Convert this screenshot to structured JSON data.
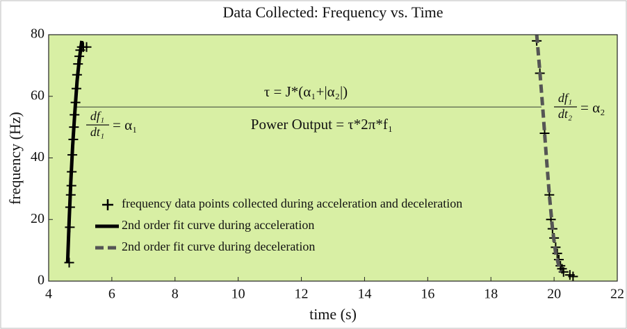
{
  "chart_data": {
    "type": "line",
    "title": "Data Collected: Frequency vs. Time",
    "x_label": "time (s)",
    "y_label": "frequency (Hz)",
    "xlim": [
      4,
      22
    ],
    "ylim": [
      0,
      80
    ],
    "xticks": [
      4,
      6,
      8,
      10,
      12,
      14,
      16,
      18,
      20,
      22
    ],
    "yticks": [
      0,
      20,
      40,
      60,
      80
    ],
    "grid": false,
    "background": "#d8efa4",
    "series": [
      {
        "name": "frequency data points collected during acceleration and deceleration",
        "color": "#000000",
        "marker": "+",
        "line": false,
        "x": [
          4.65,
          4.67,
          4.68,
          4.7,
          4.72,
          4.73,
          4.75,
          4.78,
          4.8,
          4.82,
          4.85,
          4.88,
          4.9,
          4.93,
          4.97,
          5.0,
          5.05,
          5.1,
          5.2,
          19.45,
          19.55,
          19.7,
          19.85,
          19.9,
          19.95,
          20.0,
          20.05,
          20.1,
          20.15,
          20.2,
          20.25,
          20.3,
          20.5,
          20.6
        ],
        "values": [
          6,
          17.5,
          24,
          28,
          31,
          35.5,
          41,
          46,
          50,
          54,
          58,
          62.5,
          67,
          70.5,
          73,
          75,
          76,
          76,
          76,
          78,
          67.5,
          48,
          28,
          20,
          17,
          14,
          11,
          9,
          7,
          5,
          4,
          3,
          2,
          1.5
        ]
      },
      {
        "name": "2nd order fit curve during acceleration",
        "color": "#000000",
        "marker": null,
        "line": true,
        "dash": false,
        "x": [
          4.6,
          4.65,
          4.7,
          4.76,
          4.83,
          4.9,
          4.97,
          5.05
        ],
        "values": [
          6,
          20,
          32,
          44,
          55,
          65,
          72,
          78
        ]
      },
      {
        "name": "2nd order fit curve during deceleration",
        "color": "#555555",
        "marker": null,
        "line": true,
        "dash": true,
        "x": [
          19.45,
          19.55,
          19.65,
          19.75,
          19.85,
          19.95,
          20.05,
          20.2
        ],
        "values": [
          80,
          68,
          55,
          41,
          28,
          17,
          9,
          3
        ]
      }
    ],
    "reference_line": {
      "y": 56.5,
      "x": [
        4.85,
        19.6
      ],
      "color": "#6b7a5a"
    },
    "annotations": {
      "torque": "τ = J*(α₁+|α₂|)",
      "power": "Power Output = τ*2π*f₁",
      "accel_numerator": "df₁",
      "accel_denominator": "dt₁",
      "accel_result": "= α₁",
      "decel_numerator": "df₁",
      "decel_denominator": "dt₂",
      "decel_result": "= α₂"
    }
  }
}
